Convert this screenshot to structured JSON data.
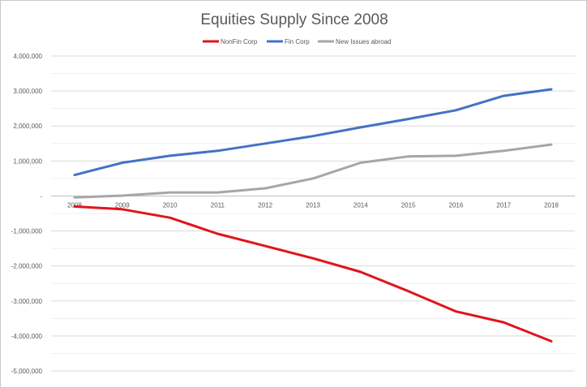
{
  "chart_data": {
    "type": "line",
    "title": "Equities Supply Since 2008",
    "xlabel": "",
    "ylabel": "",
    "categories": [
      "2008",
      "2009",
      "2010",
      "2011",
      "2012",
      "2013",
      "2014",
      "2015",
      "2016",
      "2017",
      "2018"
    ],
    "ylim": [
      -5000000,
      4000000
    ],
    "y_ticks": [
      4000000,
      3000000,
      2000000,
      1000000,
      0,
      -1000000,
      -2000000,
      -3000000,
      -4000000,
      -5000000
    ],
    "y_tick_labels": [
      "4,000,000",
      "3,000,000",
      "2,000,000",
      "1,000,000",
      "-",
      "-1,000,000",
      "-2,000,000",
      "-3,000,000",
      "-4,000,000",
      "-5,000,000"
    ],
    "grid": true,
    "legend_position": "top",
    "series": [
      {
        "name": "NonFin Corp",
        "color": "#e0151b",
        "values": [
          -300000,
          -380000,
          -620000,
          -1080000,
          -1430000,
          -1780000,
          -2170000,
          -2720000,
          -3300000,
          -3610000,
          -4150000
        ]
      },
      {
        "name": "Fin Corp",
        "color": "#4472c4",
        "values": [
          600000,
          950000,
          1150000,
          1290000,
          1500000,
          1710000,
          1960000,
          2200000,
          2450000,
          2860000,
          3050000
        ]
      },
      {
        "name": "New Issues abroad",
        "color": "#a6a6a6",
        "values": [
          -40000,
          10000,
          100000,
          100000,
          220000,
          500000,
          950000,
          1130000,
          1150000,
          1290000,
          1470000
        ]
      }
    ]
  }
}
